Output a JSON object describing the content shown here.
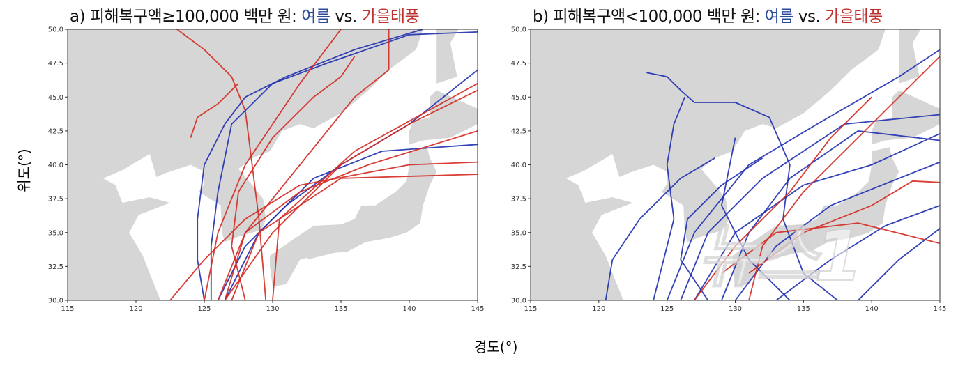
{
  "ylabel": "위도(°)",
  "xlabel": "경도(°)",
  "watermark": "뉴스1",
  "colors": {
    "summer": "#1f2fb0",
    "autumn": "#d42a22",
    "land": "#d6d6d6",
    "sea": "#ffffff"
  },
  "chart_data": [
    {
      "type": "line",
      "panel": "a",
      "title": {
        "prefix": "a) 피해복구액≥100,000 백만 원: ",
        "summer": "여름",
        "vs": " vs. ",
        "autumn": "가을태풍"
      },
      "xlim": [
        115,
        145
      ],
      "ylim": [
        30,
        50
      ],
      "xticks": [
        115,
        120,
        125,
        130,
        135,
        140,
        145
      ],
      "yticks": [
        "30.0",
        "32.5",
        "35.0",
        "37.5",
        "40.0",
        "42.5",
        "45.0",
        "47.5",
        "50.0"
      ],
      "series": [
        {
          "group": "summer",
          "points": [
            [
              125,
              30
            ],
            [
              124.5,
              33
            ],
            [
              124.5,
              36
            ],
            [
              125,
              40
            ],
            [
              126.5,
              43
            ],
            [
              128,
              45
            ],
            [
              131,
              46.5
            ],
            [
              136,
              48.5
            ],
            [
              141,
              50
            ]
          ]
        },
        {
          "group": "summer",
          "points": [
            [
              125.5,
              30
            ],
            [
              125.5,
              34
            ],
            [
              126,
              38
            ],
            [
              127,
              43
            ],
            [
              130,
              46
            ],
            [
              134,
              47.5
            ],
            [
              140,
              49.6
            ],
            [
              145,
              49.8
            ]
          ]
        },
        {
          "group": "summer",
          "points": [
            [
              126,
              30
            ],
            [
              128,
              34
            ],
            [
              131,
              37
            ],
            [
              135,
              40
            ],
            [
              140,
              43
            ],
            [
              145,
              47
            ]
          ]
        },
        {
          "group": "summer",
          "points": [
            [
              126.5,
              30
            ],
            [
              129,
              35
            ],
            [
              133,
              39
            ],
            [
              138,
              41
            ],
            [
              145,
              41.5
            ]
          ]
        },
        {
          "group": "autumn",
          "points": [
            [
              123,
              50
            ],
            [
              125,
              48.5
            ],
            [
              127,
              46.5
            ],
            [
              128,
              44
            ],
            [
              128.5,
              40
            ],
            [
              129,
              36
            ],
            [
              129.5,
              30
            ]
          ]
        },
        {
          "group": "autumn",
          "points": [
            [
              124,
              42
            ],
            [
              124.5,
              43.5
            ],
            [
              126,
              44.5
            ],
            [
              127,
              45.5
            ],
            [
              127.5,
              46
            ]
          ]
        },
        {
          "group": "autumn",
          "points": [
            [
              125,
              30
            ],
            [
              126,
              35
            ],
            [
              128,
              40
            ],
            [
              132,
              46
            ],
            [
              135,
              50
            ]
          ]
        },
        {
          "group": "autumn",
          "points": [
            [
              128,
              30
            ],
            [
              127,
              34
            ],
            [
              127.5,
              38
            ],
            [
              130,
              42
            ],
            [
              133,
              45
            ],
            [
              135,
              46.5
            ],
            [
              136,
              48
            ]
          ]
        },
        {
          "group": "autumn",
          "points": [
            [
              126,
              30
            ],
            [
              128,
              35
            ],
            [
              132,
              38
            ],
            [
              137,
              40
            ],
            [
              145,
              42.5
            ]
          ]
        },
        {
          "group": "autumn",
          "points": [
            [
              127,
              30
            ],
            [
              129,
              35
            ],
            [
              135,
              39
            ],
            [
              145,
              39.3
            ]
          ]
        },
        {
          "group": "autumn",
          "points": [
            [
              122.5,
              30
            ],
            [
              125,
              33
            ],
            [
              128,
              36
            ],
            [
              132,
              38.5
            ],
            [
              140,
              40
            ],
            [
              145,
              40.2
            ]
          ]
        },
        {
          "group": "autumn",
          "points": [
            [
              130,
              30
            ],
            [
              130.5,
              36
            ],
            [
              136,
              41
            ],
            [
              145,
              46
            ]
          ]
        },
        {
          "group": "autumn",
          "points": [
            [
              138.5,
              50
            ],
            [
              138.5,
              47
            ],
            [
              136,
              45
            ],
            [
              132,
              40
            ],
            [
              128,
              35
            ],
            [
              126.5,
              30
            ]
          ]
        },
        {
          "group": "autumn",
          "points": [
            [
              126.5,
              30
            ],
            [
              130,
              35
            ],
            [
              135,
              40
            ],
            [
              140,
              43
            ],
            [
              145,
              45.5
            ]
          ]
        }
      ]
    },
    {
      "type": "line",
      "panel": "b",
      "title": {
        "prefix": "b) 피해복구액<100,000 백만 원: ",
        "summer": "여름",
        "vs": " vs. ",
        "autumn": "가을태풍"
      },
      "xlim": [
        115,
        145
      ],
      "ylim": [
        30,
        50
      ],
      "xticks": [
        115,
        120,
        125,
        130,
        135,
        140,
        145
      ],
      "yticks": [
        "30.0",
        "32.5",
        "35.0",
        "37.5",
        "40.0",
        "42.5",
        "45.0",
        "47.5",
        "50.0"
      ],
      "series": [
        {
          "group": "summer",
          "points": [
            [
              120.5,
              30
            ],
            [
              121,
              33
            ],
            [
              123,
              36
            ],
            [
              126,
              39
            ],
            [
              128.5,
              40.5
            ]
          ]
        },
        {
          "group": "summer",
          "points": [
            [
              123.5,
              46.8
            ],
            [
              125,
              46.5
            ],
            [
              126,
              45.5
            ],
            [
              127,
              44.6
            ],
            [
              130,
              44.6
            ],
            [
              132.5,
              43.5
            ],
            [
              134,
              40
            ],
            [
              133.5,
              36
            ],
            [
              135,
              32
            ],
            [
              137.5,
              30
            ]
          ]
        },
        {
          "group": "summer",
          "points": [
            [
              126.3,
              45
            ],
            [
              125.5,
              43
            ],
            [
              125,
              40
            ],
            [
              125.5,
              36
            ],
            [
              124.5,
              32
            ],
            [
              124,
              30
            ]
          ]
        },
        {
          "group": "summer",
          "points": [
            [
              125,
              30
            ],
            [
              127,
              35
            ],
            [
              131,
              40
            ],
            [
              136,
              43
            ],
            [
              142,
              46.5
            ],
            [
              145,
              48.5
            ]
          ]
        },
        {
          "group": "summer",
          "points": [
            [
              126,
              30
            ],
            [
              128,
              35
            ],
            [
              132,
              39
            ],
            [
              138,
              43
            ],
            [
              145,
              43.7
            ]
          ]
        },
        {
          "group": "summer",
          "points": [
            [
              127,
              30
            ],
            [
              130,
              35
            ],
            [
              135,
              38.5
            ],
            [
              140,
              40
            ],
            [
              145,
              42.3
            ]
          ]
        },
        {
          "group": "summer",
          "points": [
            [
              129,
              30
            ],
            [
              131,
              35
            ],
            [
              134,
              39
            ],
            [
              139,
              42.5
            ],
            [
              145,
              41.8
            ]
          ]
        },
        {
          "group": "summer",
          "points": [
            [
              130,
              30
            ],
            [
              133,
              34
            ],
            [
              137,
              37
            ],
            [
              142,
              39
            ],
            [
              145,
              40.2
            ]
          ]
        },
        {
          "group": "summer",
          "points": [
            [
              133,
              30
            ],
            [
              137,
              33
            ],
            [
              141,
              35.5
            ],
            [
              145,
              37
            ]
          ]
        },
        {
          "group": "summer",
          "points": [
            [
              139,
              30
            ],
            [
              142,
              33
            ],
            [
              145,
              35.3
            ]
          ]
        },
        {
          "group": "summer",
          "points": [
            [
              134,
              30
            ],
            [
              131,
              33
            ],
            [
              129,
              37
            ],
            [
              130,
              42
            ]
          ]
        },
        {
          "group": "summer",
          "points": [
            [
              128,
              30
            ],
            [
              126,
              33
            ],
            [
              126.5,
              36
            ],
            [
              129,
              38.5
            ],
            [
              132,
              40.5
            ]
          ]
        },
        {
          "group": "autumn",
          "points": [
            [
              127,
              30
            ],
            [
              130,
              34
            ],
            [
              134,
              38
            ],
            [
              137,
              42
            ],
            [
              140,
              45
            ]
          ]
        },
        {
          "group": "autumn",
          "points": [
            [
              131,
              30
            ],
            [
              132,
              34
            ],
            [
              135,
              38
            ],
            [
              139,
              42
            ],
            [
              145,
              48
            ]
          ]
        },
        {
          "group": "autumn",
          "points": [
            [
              129,
              32
            ],
            [
              133,
              35
            ],
            [
              139,
              35.7
            ],
            [
              145,
              34.2
            ]
          ]
        },
        {
          "group": "autumn",
          "points": [
            [
              131,
              32
            ],
            [
              135,
              35
            ],
            [
              140,
              37
            ],
            [
              143,
              38.8
            ],
            [
              145,
              38.7
            ]
          ]
        }
      ]
    }
  ]
}
